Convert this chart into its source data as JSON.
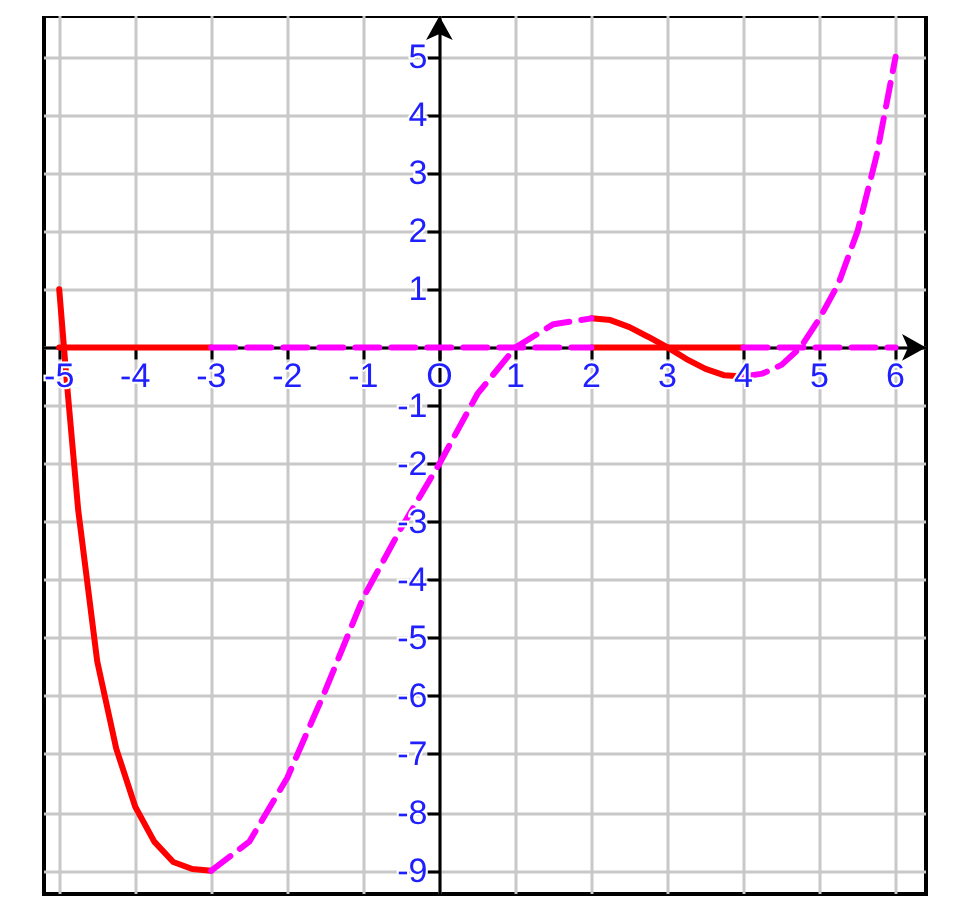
{
  "chart_data": {
    "type": "line",
    "xlim": [
      -5.2,
      6.4
    ],
    "ylim": [
      -9.4,
      5.7
    ],
    "xticks": [
      -5,
      -4,
      -3,
      -2,
      -1,
      {
        "value": 0,
        "label": "O"
      },
      1,
      2,
      3,
      4,
      5,
      6
    ],
    "yticks": [
      -9,
      -8,
      -7,
      -6,
      -5,
      -4,
      -3,
      -2,
      -1,
      {
        "value": 0,
        "label": null
      },
      1,
      2,
      3,
      4,
      5
    ],
    "grid": true,
    "marker": "none",
    "series": [
      {
        "color": "#ff0000",
        "line_style": "solid",
        "x": [
          -5,
          -4.9,
          -4.75,
          -4.5,
          -4.25,
          -4,
          -3.75,
          -3.5,
          -3.25,
          -3,
          null,
          2,
          2.25,
          2.5,
          2.75,
          3,
          3.25,
          3.5,
          3.75,
          4
        ],
        "values": [
          1,
          -0.6,
          -2.8,
          -5.4,
          -6.9,
          -7.9,
          -8.5,
          -8.85,
          -8.97,
          -9,
          null,
          0.5,
          0.47,
          0.35,
          0.18,
          0,
          -0.2,
          -0.37,
          -0.48,
          -0.5
        ]
      },
      {
        "color": "#ff00ff",
        "line_style": "dashed",
        "x": [
          -3,
          -2.5,
          -2,
          -1.5,
          -1,
          -0.5,
          0,
          0.5,
          1,
          1.5,
          2,
          null,
          4,
          4.25,
          4.5,
          4.75,
          5,
          5.25,
          5.5,
          5.75,
          6
        ],
        "values": [
          -9,
          -8.5,
          -7.4,
          -5.9,
          -4.3,
          -3.1,
          -2,
          -0.8,
          0,
          0.4,
          0.5,
          null,
          -0.5,
          -0.45,
          -0.3,
          0,
          0.5,
          1.1,
          2,
          3.3,
          5
        ]
      },
      {
        "color": "#ff0000",
        "line_style": "solid",
        "x": [
          -5,
          -3,
          null,
          2,
          4
        ],
        "values": [
          0,
          0,
          null,
          0,
          0
        ]
      },
      {
        "color": "#ff00ff",
        "line_style": "dashed",
        "x": [
          -3,
          2,
          null,
          4,
          6
        ],
        "values": [
          0,
          0,
          null,
          0,
          0
        ]
      }
    ]
  }
}
